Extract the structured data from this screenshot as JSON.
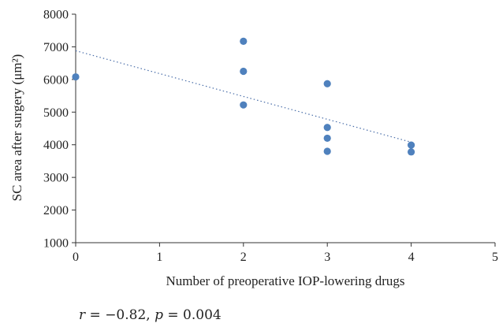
{
  "chart_data": {
    "type": "scatter",
    "xlabel": "Number of preoperative IOP-lowering drugs",
    "ylabel": "SC area after surgery (μm²)",
    "xlim": [
      0,
      5
    ],
    "ylim": [
      1000,
      8000
    ],
    "x_ticks": [
      "0",
      "1",
      "2",
      "3",
      "4",
      "5"
    ],
    "y_ticks": [
      "1000",
      "2000",
      "3000",
      "4000",
      "5000",
      "6000",
      "7000",
      "8000"
    ],
    "series": [
      {
        "color": "#4f81bd",
        "points": [
          {
            "x": 0,
            "y": 6080
          },
          {
            "x": 2,
            "y": 7170
          },
          {
            "x": 2,
            "y": 6250
          },
          {
            "x": 2,
            "y": 5220
          },
          {
            "x": 3,
            "y": 5870
          },
          {
            "x": 3,
            "y": 4530
          },
          {
            "x": 3,
            "y": 4200
          },
          {
            "x": 3,
            "y": 3800
          },
          {
            "x": 4,
            "y": 3990
          },
          {
            "x": 4,
            "y": 3780
          }
        ]
      }
    ],
    "trendline": {
      "type": "linear",
      "style": "dotted",
      "color": "#4a6ea9",
      "from": {
        "x": 0,
        "y": 6880
      },
      "to": {
        "x": 4,
        "y": 4080
      }
    },
    "grid": false,
    "legend": "none",
    "annotation": {
      "r_label": "r",
      "r_text": " = −0.82, ",
      "p_label": "p",
      "p_text": " = 0.004"
    }
  }
}
